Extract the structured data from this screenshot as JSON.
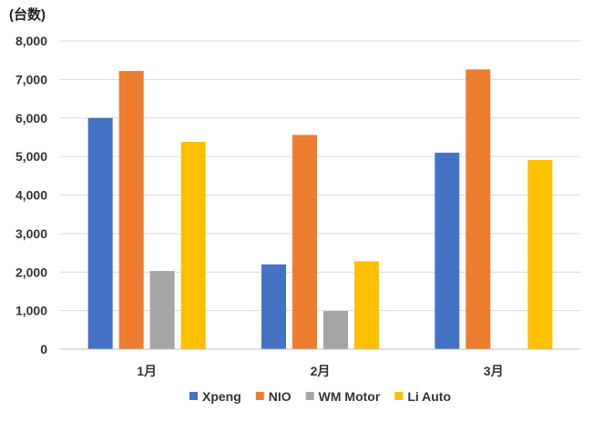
{
  "chart_data": {
    "type": "bar",
    "unit_label": "(台数)",
    "categories": [
      "1月",
      "2月",
      "3月"
    ],
    "series": [
      {
        "name": "Xpeng",
        "color": "#4472C4",
        "values": [
          6000,
          2200,
          5100
        ]
      },
      {
        "name": "NIO",
        "color": "#ED7D31",
        "values": [
          7220,
          5560,
          7260
        ]
      },
      {
        "name": "WM Motor",
        "color": "#A5A5A5",
        "values": [
          2030,
          990,
          null
        ]
      },
      {
        "name": "Li Auto",
        "color": "#FFC000",
        "values": [
          5380,
          2280,
          4910
        ]
      }
    ],
    "ylim": [
      0,
      8000
    ],
    "yticks": [
      0,
      1000,
      2000,
      3000,
      4000,
      5000,
      6000,
      7000,
      8000
    ],
    "ytick_labels": [
      "0",
      "1,000",
      "2,000",
      "3,000",
      "4,000",
      "5,000",
      "6,000",
      "7,000",
      "8,000"
    ],
    "grid": true,
    "legend_position": "bottom"
  }
}
